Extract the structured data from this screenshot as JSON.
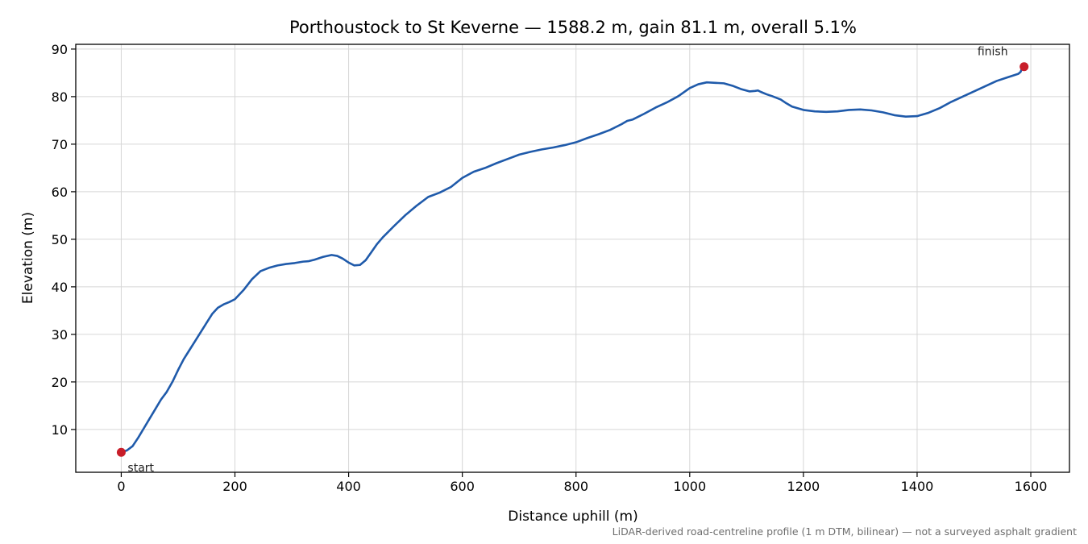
{
  "chart_data": {
    "type": "line",
    "title": "Porthoustock to St Keverne — 1588.2 m, gain 81.1 m, overall 5.1%",
    "xlabel": "Distance uphill (m)",
    "ylabel": "Elevation (m)",
    "xlim": [
      -80,
      1668
    ],
    "ylim": [
      1,
      91
    ],
    "x_ticks": [
      0,
      200,
      400,
      600,
      800,
      1000,
      1200,
      1400,
      1600
    ],
    "y_ticks": [
      10,
      20,
      30,
      40,
      50,
      60,
      70,
      80,
      90
    ],
    "grid": true,
    "line_color": "#1f5aaa",
    "marker_color": "#c81e2a",
    "series": [
      {
        "x": [
          0,
          10,
          20,
          30,
          40,
          50,
          60,
          70,
          80,
          90,
          100,
          110,
          120,
          130,
          140,
          150,
          160,
          170,
          180,
          190,
          200,
          215,
          230,
          245,
          260,
          275,
          290,
          305,
          320,
          330,
          340,
          355,
          370,
          380,
          390,
          400,
          410,
          420,
          430,
          440,
          450,
          460,
          480,
          500,
          520,
          540,
          560,
          580,
          600,
          620,
          640,
          660,
          680,
          700,
          720,
          740,
          760,
          780,
          800,
          820,
          840,
          860,
          880,
          890,
          900,
          920,
          940,
          960,
          980,
          1000,
          1015,
          1030,
          1045,
          1060,
          1075,
          1090,
          1105,
          1115,
          1120,
          1125,
          1135,
          1145,
          1160,
          1170,
          1180,
          1200,
          1220,
          1240,
          1260,
          1280,
          1300,
          1320,
          1340,
          1360,
          1380,
          1400,
          1420,
          1440,
          1460,
          1480,
          1500,
          1520,
          1540,
          1560,
          1578,
          1582,
          1585,
          1588.2
        ],
        "y": [
          5.2,
          5.6,
          6.5,
          8.3,
          10.3,
          12.3,
          14.3,
          16.3,
          17.9,
          20.0,
          22.5,
          24.8,
          26.7,
          28.6,
          30.5,
          32.4,
          34.3,
          35.6,
          36.3,
          36.8,
          37.4,
          39.3,
          41.6,
          43.3,
          44.0,
          44.5,
          44.8,
          45.0,
          45.3,
          45.4,
          45.7,
          46.3,
          46.7,
          46.5,
          45.9,
          45.1,
          44.5,
          44.6,
          45.6,
          47.3,
          49.0,
          50.4,
          52.8,
          55.1,
          57.1,
          58.9,
          59.8,
          61.0,
          62.9,
          64.2,
          65.0,
          66.0,
          66.9,
          67.8,
          68.4,
          68.9,
          69.3,
          69.8,
          70.4,
          71.3,
          72.1,
          73.0,
          74.2,
          74.9,
          75.2,
          76.4,
          77.7,
          78.8,
          80.1,
          81.8,
          82.6,
          83.0,
          82.9,
          82.8,
          82.3,
          81.6,
          81.1,
          81.2,
          81.3,
          81.0,
          80.5,
          80.1,
          79.4,
          78.6,
          77.9,
          77.2,
          76.9,
          76.8,
          76.9,
          77.2,
          77.3,
          77.1,
          76.7,
          76.1,
          75.8,
          75.9,
          76.6,
          77.6,
          78.9,
          80.0,
          81.1,
          82.2,
          83.3,
          84.1,
          84.8,
          85.2,
          86.1,
          86.3
        ]
      }
    ],
    "annotations": {
      "start_label": "start",
      "finish_label": "finish"
    },
    "start_point": {
      "x": 0,
      "y": 5.2
    },
    "finish_point": {
      "x": 1588.2,
      "y": 86.3
    },
    "footnote": "LiDAR-derived road-centreline profile (1 m DTM, bilinear) — not a surveyed asphalt gradient"
  }
}
